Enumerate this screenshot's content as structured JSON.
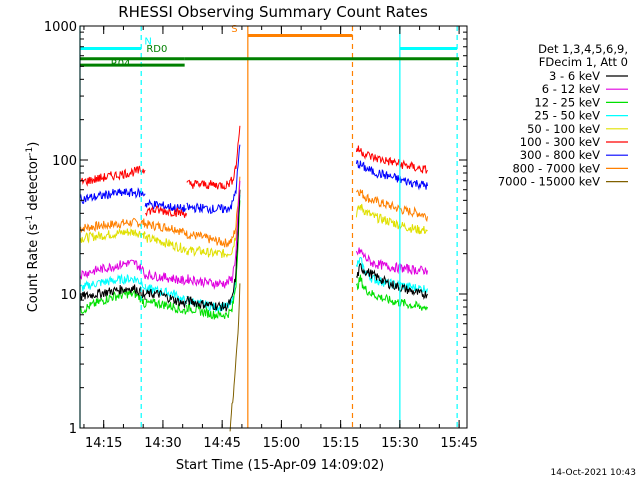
{
  "chart_data": {
    "type": "line",
    "title": "RHESSI Observing Summary Count Rates",
    "xlabel": "Start Time (15-Apr-09 14:09:02)",
    "ylabel_main": "Count Rate (s",
    "ylabel_sup1": "-1",
    "ylabel_mid": " detector",
    "ylabel_sup2": "-1",
    "ylabel_end": ")",
    "yscale": "log",
    "ylim": [
      1,
      1000
    ],
    "xlim_minutes": [
      0,
      98
    ],
    "x_ticks": [
      {
        "label": "14:15",
        "min": 6
      },
      {
        "label": "14:30",
        "min": 21
      },
      {
        "label": "14:45",
        "min": 36
      },
      {
        "label": "15:00",
        "min": 51
      },
      {
        "label": "15:15",
        "min": 66
      },
      {
        "label": "15:30",
        "min": 81
      },
      {
        "label": "15:45",
        "min": 96
      }
    ],
    "y_ticks": [
      {
        "label": "1",
        "value": 1
      },
      {
        "label": "10",
        "value": 10
      },
      {
        "label": "100",
        "value": 100
      },
      {
        "label": "1000",
        "value": 1000
      }
    ],
    "legend_header": [
      "Det 1,3,4,5,6,9,",
      "FDecim 1, Att 0"
    ],
    "legend_placement": "right",
    "series": [
      {
        "name": "3 - 6 keV",
        "color": "#000000",
        "segments": [
          {
            "x": [
              0,
              4,
              8,
              12,
              14,
              16,
              16.5
            ],
            "y": [
              9.5,
              10,
              10.5,
              11,
              11,
              10,
              9
            ]
          },
          {
            "x": [
              16.5,
              20,
              24,
              26,
              27
            ],
            "y": [
              10,
              10,
              9,
              8.5,
              8.5
            ]
          },
          {
            "x": [
              27,
              30,
              34,
              37,
              38.5,
              39.5,
              40.5
            ],
            "y": [
              9,
              8.5,
              8.2,
              8,
              9,
              14,
              60
            ]
          },
          {
            "x": [
              70,
              71,
              72,
              74,
              78,
              82,
              86,
              88
            ],
            "y": [
              13,
              16,
              15,
              14,
              12,
              11,
              10,
              10
            ]
          }
        ]
      },
      {
        "name": "6 - 12 keV",
        "color": "#e000e0",
        "segments": [
          {
            "x": [
              0,
              4,
              8,
              12,
              14,
              16,
              16.5
            ],
            "y": [
              14,
              15,
              16,
              17,
              17,
              15,
              13
            ]
          },
          {
            "x": [
              16.5,
              20,
              24,
              26,
              27
            ],
            "y": [
              14,
              13.5,
              13,
              12.5,
              12.5
            ]
          },
          {
            "x": [
              27,
              30,
              34,
              37,
              38.5,
              39.5,
              40.5
            ],
            "y": [
              13,
              12.5,
              12,
              12,
              13,
              20,
              70
            ]
          },
          {
            "x": [
              70,
              71,
              72,
              74,
              78,
              82,
              86,
              88
            ],
            "y": [
              20,
              21,
              19,
              17,
              16,
              15.5,
              15,
              15
            ]
          }
        ]
      },
      {
        "name": "12 - 25 keV",
        "color": "#00e000",
        "segments": [
          {
            "x": [
              0,
              4,
              8,
              12,
              14,
              16,
              16.5
            ],
            "y": [
              7.5,
              8.5,
              9.5,
              10,
              10,
              9,
              8
            ]
          },
          {
            "x": [
              16.5,
              20,
              24,
              26,
              27
            ],
            "y": [
              8.5,
              8.5,
              8,
              7.5,
              7.5
            ]
          },
          {
            "x": [
              27,
              30,
              34,
              37,
              38.5,
              39.5,
              40.5
            ],
            "y": [
              8,
              7.5,
              7,
              7,
              7.5,
              12,
              50
            ]
          },
          {
            "x": [
              70,
              71,
              72,
              74,
              78,
              82,
              86,
              88
            ],
            "y": [
              11,
              13,
              11,
              10,
              9,
              8.5,
              8,
              8
            ]
          }
        ]
      },
      {
        "name": "25 - 50 keV",
        "color": "#00ffff",
        "segments": [
          {
            "x": [
              0,
              4,
              8,
              12,
              14,
              16,
              16.5
            ],
            "y": [
              11,
              12,
              12.5,
              13,
              13,
              12,
              11
            ]
          },
          {
            "x": [
              16.5,
              20,
              24,
              26,
              27
            ],
            "y": [
              11,
              10.5,
              10,
              9,
              9
            ]
          },
          {
            "x": [
              27,
              30,
              34,
              37,
              38.5,
              39.5,
              40.5
            ],
            "y": [
              9,
              8.5,
              8,
              8,
              8.5,
              13,
              55
            ]
          },
          {
            "x": [
              70,
              71,
              72,
              74,
              78,
              82,
              86,
              88
            ],
            "y": [
              16,
              18,
              15,
              13,
              12,
              11.5,
              11,
              11
            ]
          }
        ]
      },
      {
        "name": "50 - 100 keV",
        "color": "#e0e000",
        "segments": [
          {
            "x": [
              0,
              4,
              8,
              12,
              14,
              16,
              16.5
            ],
            "y": [
              26,
              27,
              28,
              29,
              29,
              28,
              28
            ]
          },
          {
            "x": [
              16.5,
              20,
              24,
              26,
              27
            ],
            "y": [
              26,
              25,
              23,
              22,
              22
            ]
          },
          {
            "x": [
              27,
              30,
              34,
              37,
              38.5,
              39.5,
              40.5
            ],
            "y": [
              21,
              21,
              20,
              20,
              21,
              28,
              60
            ]
          },
          {
            "x": [
              70,
              71,
              72,
              74,
              78,
              82,
              86,
              88
            ],
            "y": [
              40,
              45,
              42,
              38,
              35,
              32,
              30,
              30
            ]
          }
        ]
      },
      {
        "name": "100 - 300 keV",
        "color": "#ff0000",
        "segments": [
          {
            "x": [
              0,
              4,
              8,
              12,
              14,
              16,
              16.5
            ],
            "y": [
              68,
              72,
              76,
              80,
              82,
              84,
              84
            ]
          },
          {
            "x": [
              16.5,
              20,
              24,
              26,
              27
            ],
            "y": [
              42,
              42,
              41,
              40,
              40
            ]
          },
          {
            "x": [
              27,
              30,
              34,
              37,
              38.5,
              39.5,
              40.5
            ],
            "y": [
              66,
              66,
              65,
              65,
              70,
              90,
              180
            ]
          },
          {
            "x": [
              70,
              71,
              72,
              74,
              78,
              82,
              86,
              88
            ],
            "y": [
              120,
              118,
              112,
              105,
              98,
              92,
              86,
              84
            ]
          }
        ]
      },
      {
        "name": "300 - 800 keV",
        "color": "#0000ff",
        "segments": [
          {
            "x": [
              0,
              4,
              8,
              12,
              14,
              16,
              16.5
            ],
            "y": [
              51,
              53,
              56,
              57,
              57,
              56,
              56
            ]
          },
          {
            "x": [
              16.5,
              20,
              24,
              26,
              27
            ],
            "y": [
              47,
              46,
              44,
              43,
              43
            ]
          },
          {
            "x": [
              27,
              30,
              34,
              37,
              38.5,
              39.5,
              40.5
            ],
            "y": [
              44,
              44,
              43,
              43,
              46,
              60,
              130
            ]
          },
          {
            "x": [
              70,
              71,
              72,
              74,
              78,
              82,
              86,
              88
            ],
            "y": [
              95,
              92,
              88,
              82,
              76,
              70,
              66,
              64
            ]
          }
        ]
      },
      {
        "name": "800 - 7000 keV",
        "color": "#ff8000",
        "segments": [
          {
            "x": [
              0,
              4,
              8,
              12,
              14,
              16,
              16.5
            ],
            "y": [
              31,
              32,
              33,
              34,
              34,
              34,
              34
            ]
          },
          {
            "x": [
              16.5,
              20,
              24,
              26,
              27
            ],
            "y": [
              33,
              32,
              31,
              29,
              29
            ]
          },
          {
            "x": [
              27,
              30,
              34,
              37,
              38.5,
              39.5,
              40.5
            ],
            "y": [
              28,
              27,
              25,
              24,
              25,
              32,
              75
            ]
          },
          {
            "x": [
              70,
              71,
              72,
              74,
              78,
              82,
              86,
              88
            ],
            "y": [
              60,
              58,
              54,
              50,
              46,
              42,
              40,
              38
            ]
          }
        ]
      },
      {
        "name": "7000 - 15000 keV",
        "color": "#806000",
        "segments": [
          {
            "x": [
              38,
              39,
              40,
              40.5
            ],
            "y": [
              1,
              2,
              5,
              12
            ]
          }
        ]
      }
    ],
    "vertical_markers": [
      {
        "x": 0,
        "color": "#00ffff",
        "style": "solid"
      },
      {
        "x": 15.5,
        "color": "#00ffff",
        "style": "dashed"
      },
      {
        "x": 81,
        "color": "#00ffff",
        "style": "solid"
      },
      {
        "x": 95.5,
        "color": "#00ffff",
        "style": "dashed"
      },
      {
        "x": 42.5,
        "color": "#ff8000",
        "style": "solid"
      },
      {
        "x": 69,
        "color": "#ff8000",
        "style": "dashed"
      }
    ],
    "state_bars": [
      {
        "x0": 0,
        "x1": 15.5,
        "value": 680,
        "color": "#00ffff",
        "label": "N",
        "label_x": 16.3,
        "label_value": 730,
        "label_color": "#00ffff"
      },
      {
        "x0": 81,
        "x1": 95.5,
        "value": 680,
        "color": "#00ffff",
        "label": "",
        "label_x": 0,
        "label_value": 0,
        "label_color": "#00ffff"
      },
      {
        "x0": 42.5,
        "x1": 69,
        "value": 850,
        "color": "#ff8000",
        "label": "S",
        "label_x": 38.3,
        "label_value": 900,
        "label_color": "#ff8000"
      },
      {
        "x0": 0,
        "x1": 26.5,
        "value": 570,
        "color": "#008000",
        "label": "RD0",
        "label_x": 16.8,
        "label_value": 640,
        "label_color": "#008000"
      },
      {
        "x0": 0,
        "x1": 26.5,
        "value": 510,
        "color": "#008000",
        "label": "R04",
        "label_x": 7.8,
        "label_value": 500,
        "label_color": "#008000"
      },
      {
        "x0": 26.5,
        "x1": 96,
        "value": 570,
        "color": "#008000",
        "label": "",
        "label_x": 0,
        "label_value": 0,
        "label_color": "#008000"
      }
    ],
    "timestamp": "14-Oct-2021 10:43",
    "grid": false
  }
}
